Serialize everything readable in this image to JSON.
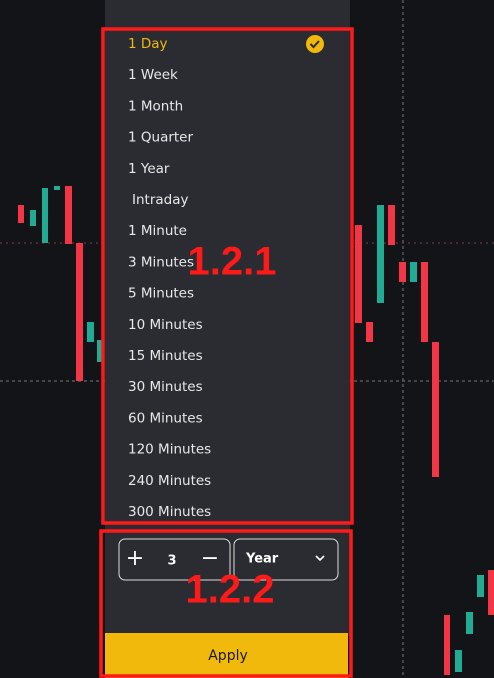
{
  "dropdown": {
    "items": [
      "1 Day",
      "1 Week",
      "1 Month",
      "1 Quarter",
      "1 Year",
      "Intraday",
      "1  Minute",
      "3  Minutes",
      "5  Minutes",
      "10  Minutes",
      "15  Minutes",
      "30  Minutes",
      "60  Minutes",
      "120  Minutes",
      "240  Minutes",
      "300  Minutes"
    ],
    "selected": 0
  },
  "custom": {
    "plus": "+",
    "count": "3",
    "minus": "−",
    "unit": "Year",
    "apply": "Apply"
  },
  "annotations": [
    "1.2.1",
    "1.2.2"
  ]
}
